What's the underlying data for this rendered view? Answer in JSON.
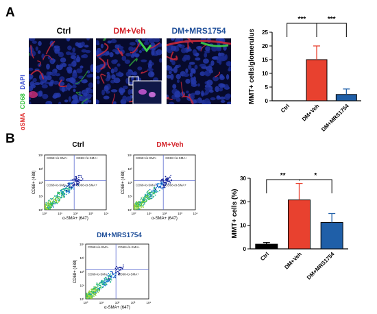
{
  "panel_a": {
    "label": "A",
    "micro_titles": [
      {
        "text": "Ctrl",
        "color": "#000000"
      },
      {
        "text": "DM+Veh",
        "color": "#d4232a"
      },
      {
        "text": "DM+MRS1754",
        "color": "#1f4f9a"
      }
    ],
    "stain_label": {
      "part1": "αSMA",
      "part2": "CD68",
      "part3": "DAPI"
    }
  },
  "panel_b": {
    "label": "B",
    "flow_plots": [
      {
        "title": "Ctrl",
        "title_color": "#000000",
        "quadrants": [
          "CD68+/α-SMA-",
          "CD68+/α-SMA+",
          "CD68-/α-SMA-",
          "CD68-/α-SMA+"
        ],
        "xlabel": "α-SMA+ (647)",
        "ylabel": "CD68+ (488)"
      },
      {
        "title": "DM+Veh",
        "title_color": "#d4232a",
        "quadrants": [
          "CD68+/α-SMA-",
          "CD68+/α-SMA+",
          "CD68-/α-SMA-",
          "CD68-/α-SMA+"
        ],
        "xlabel": "α-SMA+ (647)",
        "ylabel": "CD68+ (488)"
      },
      {
        "title": "DM+MRS1754",
        "title_color": "#1f4f9a",
        "quadrants": [
          "CD68+/α-SMA-",
          "CD68+/α-SMA+",
          "CD68-/α-SMA-",
          "CD68-/α-SMA+"
        ],
        "xlabel": "α-SMA+ (647)",
        "ylabel": "CD68+ (488)"
      }
    ],
    "tick_labels": [
      "10⁰",
      "10¹",
      "10²",
      "10³",
      "10⁴"
    ]
  },
  "chart_data": [
    {
      "type": "bar",
      "ylabel": "MMT+ cells/glomerulus",
      "categories": [
        "Ctrl",
        "DM+Veh",
        "DM+MRS1754"
      ],
      "values": [
        0,
        15,
        2.3
      ],
      "errors": [
        0,
        5,
        2
      ],
      "colors": [
        "#000000",
        "#e8412f",
        "#1f5fa8"
      ],
      "ylim": [
        0,
        25
      ],
      "yticks": [
        "0",
        "5",
        "10",
        "15",
        "20",
        "25"
      ],
      "significance": [
        "***",
        "***"
      ]
    },
    {
      "type": "bar",
      "ylabel": "MMT+ cells (%)",
      "categories": [
        "Ctrl",
        "DM+Veh",
        "DM+MRS1754"
      ],
      "values": [
        2,
        20.8,
        11.2
      ],
      "errors": [
        0.7,
        7,
        3.8
      ],
      "colors": [
        "#000000",
        "#e8412f",
        "#1f5fa8"
      ],
      "ylim": [
        0,
        30
      ],
      "yticks": [
        "0",
        "10",
        "20",
        "30"
      ],
      "significance": [
        "**",
        "*"
      ]
    }
  ]
}
